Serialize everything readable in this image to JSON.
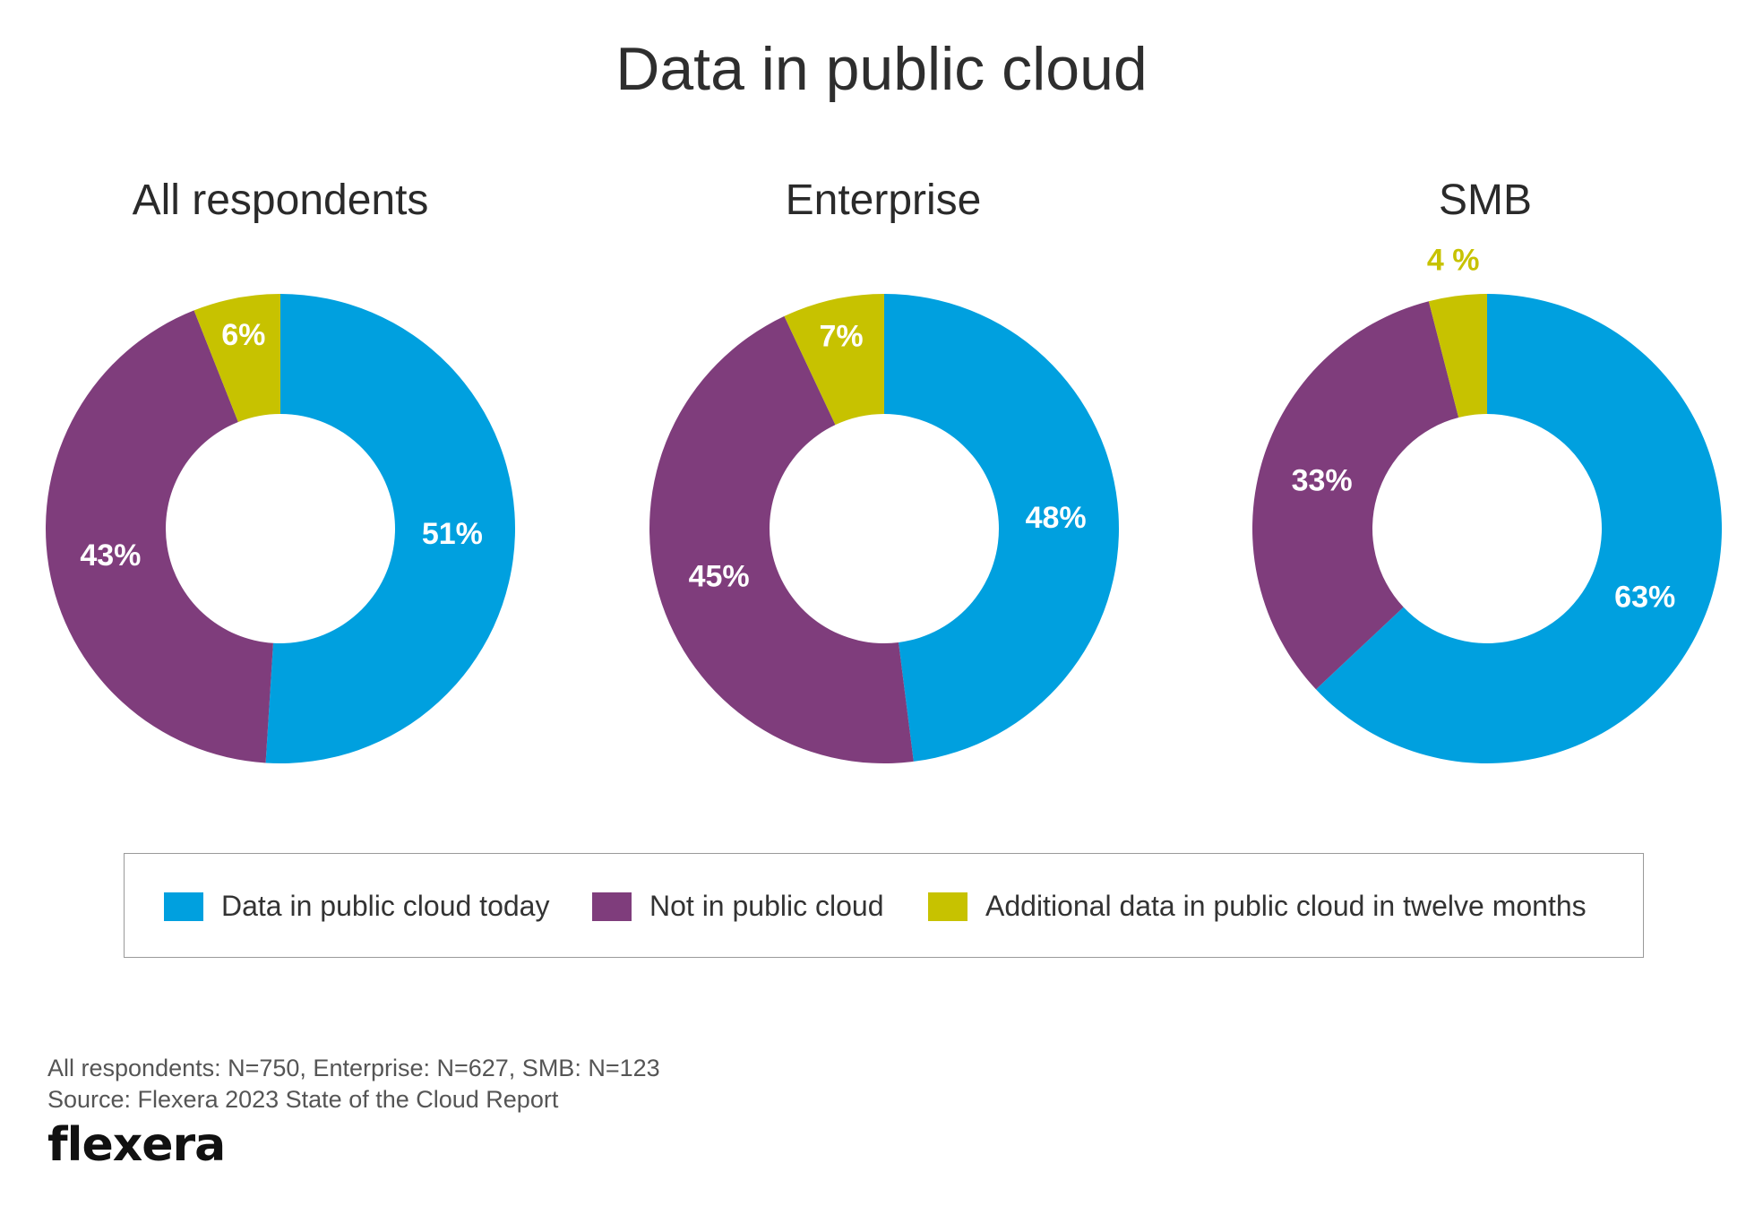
{
  "title": "Data in public cloud",
  "colors": {
    "today": "#00a0df",
    "not": "#7f3d7c",
    "additional": "#c7c200",
    "label_inside": "#ffffff"
  },
  "legend": [
    {
      "label": "Data in public cloud today",
      "color": "#00a0df"
    },
    {
      "label": "Not in public cloud",
      "color": "#7f3d7c"
    },
    {
      "label": "Additional data in public cloud in twelve months",
      "color": "#c7c200"
    }
  ],
  "chart_data": [
    {
      "type": "donut",
      "title": "All respondents",
      "categories": [
        "Data in public cloud today",
        "Not in public cloud",
        "Additional data in public cloud in twelve months"
      ],
      "values": [
        51,
        43,
        6
      ],
      "labels": [
        "51%",
        "43%",
        "6%"
      ]
    },
    {
      "type": "donut",
      "title": "Enterprise",
      "categories": [
        "Data in public cloud today",
        "Not in public cloud",
        "Additional data in public cloud in twelve months"
      ],
      "values": [
        48,
        45,
        7
      ],
      "labels": [
        "48%",
        "45%",
        "7%"
      ]
    },
    {
      "type": "donut",
      "title": "SMB",
      "categories": [
        "Data in public cloud today",
        "Not in public cloud",
        "Additional data in public cloud in twelve months"
      ],
      "values": [
        63,
        33,
        4
      ],
      "labels": [
        "63%",
        "33%",
        "4 %"
      ]
    }
  ],
  "footnote": {
    "line1": "All respondents: N=750, Enterprise: N=627, SMB: N=123",
    "line2": "Source: Flexera 2023 State of the Cloud Report"
  },
  "logo": "flexera"
}
